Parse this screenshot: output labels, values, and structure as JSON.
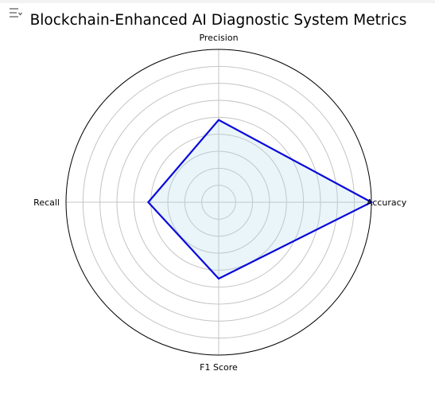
{
  "title": "Blockchain-Enhanced AI Diagnostic System Metrics",
  "toolbar": {
    "menu_icon": "sort-menu-icon"
  },
  "chart_data": {
    "type": "radar",
    "title": "Blockchain-Enhanced AI Diagnostic System Metrics",
    "categories": [
      "Accuracy",
      "Precision",
      "Recall",
      "F1 Score"
    ],
    "series": [
      {
        "values": [
          0.98,
          0.92,
          0.91,
          0.915
        ]
      }
    ],
    "rlim": [
      0.85,
      0.98
    ],
    "grid": true,
    "tick_labels_shown": false,
    "colors": {
      "line": "#0a0adc",
      "fill": "#add8e6"
    }
  }
}
